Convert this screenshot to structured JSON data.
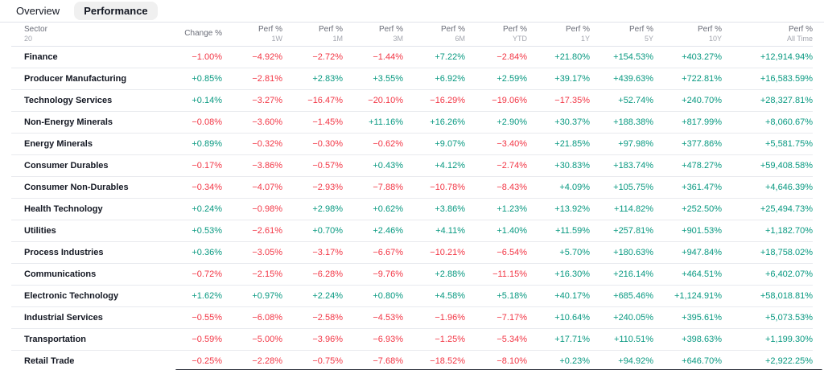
{
  "tabs": [
    {
      "label": "Overview",
      "active": false
    },
    {
      "label": "Performance",
      "active": true
    }
  ],
  "colors": {
    "positive": "#089981",
    "negative": "#f23645",
    "scrollbar": "#2a2e39"
  },
  "table": {
    "sector_column": {
      "label": "Sector",
      "count": "20"
    },
    "columns": [
      {
        "label": "Change %",
        "sub": ""
      },
      {
        "label": "Perf %",
        "sub": "1W"
      },
      {
        "label": "Perf %",
        "sub": "1M"
      },
      {
        "label": "Perf %",
        "sub": "3M"
      },
      {
        "label": "Perf %",
        "sub": "6M"
      },
      {
        "label": "Perf %",
        "sub": "YTD"
      },
      {
        "label": "Perf %",
        "sub": "1Y"
      },
      {
        "label": "Perf %",
        "sub": "5Y"
      },
      {
        "label": "Perf %",
        "sub": "10Y"
      },
      {
        "label": "Perf %",
        "sub": "All Time"
      }
    ],
    "rows": [
      {
        "sector": "Finance",
        "values": [
          "−1.00%",
          "−4.92%",
          "−2.72%",
          "−1.44%",
          "+7.22%",
          "−2.84%",
          "+21.80%",
          "+154.53%",
          "+403.27%",
          "+12,914.94%"
        ]
      },
      {
        "sector": "Producer Manufacturing",
        "values": [
          "+0.85%",
          "−2.81%",
          "+2.83%",
          "+3.55%",
          "+6.92%",
          "+2.59%",
          "+39.17%",
          "+439.63%",
          "+722.81%",
          "+16,583.59%"
        ]
      },
      {
        "sector": "Technology Services",
        "values": [
          "+0.14%",
          "−3.27%",
          "−16.47%",
          "−20.10%",
          "−16.29%",
          "−19.06%",
          "−17.35%",
          "+52.74%",
          "+240.70%",
          "+28,327.81%"
        ]
      },
      {
        "sector": "Non-Energy Minerals",
        "values": [
          "−0.08%",
          "−3.60%",
          "−1.45%",
          "+11.16%",
          "+16.26%",
          "+2.90%",
          "+30.37%",
          "+188.38%",
          "+817.99%",
          "+8,060.67%"
        ]
      },
      {
        "sector": "Energy Minerals",
        "values": [
          "+0.89%",
          "−0.32%",
          "−0.30%",
          "−0.62%",
          "+9.07%",
          "−3.40%",
          "+21.85%",
          "+97.98%",
          "+377.86%",
          "+5,581.75%"
        ]
      },
      {
        "sector": "Consumer Durables",
        "values": [
          "−0.17%",
          "−3.86%",
          "−0.57%",
          "+0.43%",
          "+4.12%",
          "−2.74%",
          "+30.83%",
          "+183.74%",
          "+478.27%",
          "+59,408.58%"
        ]
      },
      {
        "sector": "Consumer Non-Durables",
        "values": [
          "−0.34%",
          "−4.07%",
          "−2.93%",
          "−7.88%",
          "−10.78%",
          "−8.43%",
          "+4.09%",
          "+105.75%",
          "+361.47%",
          "+4,646.39%"
        ]
      },
      {
        "sector": "Health Technology",
        "values": [
          "+0.24%",
          "−0.98%",
          "+2.98%",
          "+0.62%",
          "+3.86%",
          "+1.23%",
          "+13.92%",
          "+114.82%",
          "+252.50%",
          "+25,494.73%"
        ]
      },
      {
        "sector": "Utilities",
        "values": [
          "+0.53%",
          "−2.61%",
          "+0.70%",
          "+2.46%",
          "+4.11%",
          "+1.40%",
          "+11.59%",
          "+257.81%",
          "+901.53%",
          "+1,182.70%"
        ]
      },
      {
        "sector": "Process Industries",
        "values": [
          "+0.36%",
          "−3.05%",
          "−3.17%",
          "−6.67%",
          "−10.21%",
          "−6.54%",
          "+5.70%",
          "+180.63%",
          "+947.84%",
          "+18,758.02%"
        ]
      },
      {
        "sector": "Communications",
        "values": [
          "−0.72%",
          "−2.15%",
          "−6.28%",
          "−9.76%",
          "+2.88%",
          "−11.15%",
          "+16.30%",
          "+216.14%",
          "+464.51%",
          "+6,402.07%"
        ]
      },
      {
        "sector": "Electronic Technology",
        "values": [
          "+1.62%",
          "+0.97%",
          "+2.24%",
          "+0.80%",
          "+4.58%",
          "+5.18%",
          "+40.17%",
          "+685.46%",
          "+1,124.91%",
          "+58,018.81%"
        ]
      },
      {
        "sector": "Industrial Services",
        "values": [
          "−0.55%",
          "−6.08%",
          "−2.58%",
          "−4.53%",
          "−1.96%",
          "−7.17%",
          "+10.64%",
          "+240.05%",
          "+395.61%",
          "+5,073.53%"
        ]
      },
      {
        "sector": "Transportation",
        "values": [
          "−0.59%",
          "−5.00%",
          "−3.96%",
          "−6.93%",
          "−1.25%",
          "−5.34%",
          "+17.71%",
          "+110.51%",
          "+398.63%",
          "+1,199.30%"
        ]
      },
      {
        "sector": "Retail Trade",
        "values": [
          "−0.25%",
          "−2.28%",
          "−0.75%",
          "−7.68%",
          "−18.52%",
          "−8.10%",
          "+0.23%",
          "+94.92%",
          "+646.70%",
          "+2,922.25%"
        ]
      }
    ]
  }
}
